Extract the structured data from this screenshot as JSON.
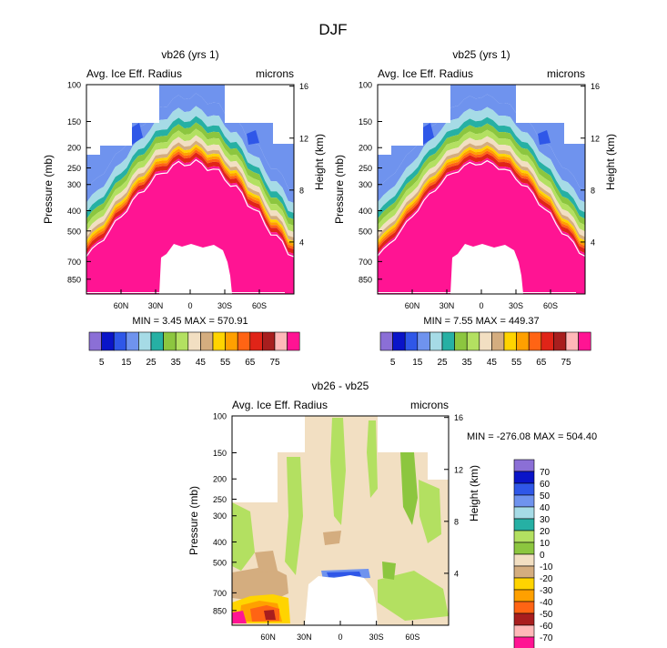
{
  "figure_title": "DJF",
  "colors": {
    "abs_scale": [
      "#8b6fd6",
      "#0a14c8",
      "#2f57e8",
      "#6f93ee",
      "#a6dbe6",
      "#26b0a4",
      "#8cc63f",
      "#b3e061",
      "#f2dfc2",
      "#d4ad7f",
      "#ffd400",
      "#ffa000",
      "#ff6414",
      "#e02418",
      "#a81e1e",
      "#ffb8b8",
      "#ff1493"
    ],
    "diff_scale": [
      "#8b6fd6",
      "#0a14c8",
      "#2f57e8",
      "#6f93ee",
      "#a6dbe6",
      "#26b0a4",
      "#b3e061",
      "#8cc63f",
      "#f2dfc2",
      "#d4ad7f",
      "#ffd400",
      "#ffa000",
      "#ff6414",
      "#a81e1e",
      "#ffb8b8",
      "#ff1493"
    ]
  },
  "chart_data": [
    {
      "type": "heatmap",
      "title": "vb26 (yrs 1)",
      "left_label": "Avg. Ice Eff. Radius",
      "right_label": "microns",
      "xlabel": "",
      "ylabel": "Pressure (mb)",
      "y2label": "Height (km)",
      "x_ticks": [
        "60N",
        "30N",
        "0",
        "30S",
        "60S"
      ],
      "x_tick_values": [
        60,
        30,
        0,
        -30,
        -60
      ],
      "xlim": [
        90,
        -90
      ],
      "y_ticks": [
        "100",
        "150",
        "200",
        "250",
        "300",
        "400",
        "500",
        "700",
        "850"
      ],
      "y_tick_values": [
        100,
        150,
        200,
        250,
        300,
        400,
        500,
        700,
        850
      ],
      "ylim": [
        100,
        1000
      ],
      "y2_ticks": [
        "16",
        "12",
        "8",
        "4"
      ],
      "y2_tick_values": [
        16,
        12,
        8,
        4
      ],
      "min": 3.45,
      "max": 570.91,
      "stats": "MIN =   3.45  MAX = 570.91",
      "colorbar_labels": [
        "5",
        "15",
        "25",
        "35",
        "45",
        "55",
        "65",
        "75"
      ],
      "contour_levels": [
        5,
        10,
        15,
        20,
        25,
        30,
        35,
        40,
        45,
        50,
        55,
        60,
        65,
        70,
        75
      ]
    },
    {
      "type": "heatmap",
      "title": "vb25 (yrs 1)",
      "left_label": "Avg. Ice Eff. Radius",
      "right_label": "microns",
      "xlabel": "",
      "ylabel": "Pressure (mb)",
      "y2label": "Height (km)",
      "x_ticks": [
        "60N",
        "30N",
        "0",
        "30S",
        "60S"
      ],
      "x_tick_values": [
        60,
        30,
        0,
        -30,
        -60
      ],
      "xlim": [
        90,
        -90
      ],
      "y_ticks": [
        "100",
        "150",
        "200",
        "250",
        "300",
        "400",
        "500",
        "700",
        "850"
      ],
      "y_tick_values": [
        100,
        150,
        200,
        250,
        300,
        400,
        500,
        700,
        850
      ],
      "ylim": [
        100,
        1000
      ],
      "y2_ticks": [
        "16",
        "12",
        "8",
        "4"
      ],
      "y2_tick_values": [
        16,
        12,
        8,
        4
      ],
      "min": 7.55,
      "max": 449.37,
      "stats": "MIN =   7.55  MAX = 449.37",
      "colorbar_labels": [
        "5",
        "15",
        "25",
        "35",
        "45",
        "55",
        "65",
        "75"
      ],
      "contour_levels": [
        5,
        10,
        15,
        20,
        25,
        30,
        35,
        40,
        45,
        50,
        55,
        60,
        65,
        70,
        75
      ]
    },
    {
      "type": "heatmap",
      "title": "vb26 - vb25",
      "left_label": "Avg. Ice Eff. Radius",
      "right_label": "microns",
      "xlabel": "",
      "ylabel": "Pressure (mb)",
      "y2label": "Height (km)",
      "x_ticks": [
        "60N",
        "30N",
        "0",
        "30S",
        "60S"
      ],
      "x_tick_values": [
        60,
        30,
        0,
        -30,
        -60
      ],
      "xlim": [
        90,
        -90
      ],
      "y_ticks": [
        "100",
        "150",
        "200",
        "250",
        "300",
        "400",
        "500",
        "700",
        "850"
      ],
      "y_tick_values": [
        100,
        150,
        200,
        250,
        300,
        400,
        500,
        700,
        850
      ],
      "ylim": [
        100,
        1000
      ],
      "y2_ticks": [
        "16",
        "12",
        "8",
        "4"
      ],
      "y2_tick_values": [
        16,
        12,
        8,
        4
      ],
      "min": -276.08,
      "max": 504.4,
      "stats": "MIN = -276.08  MAX = 504.40",
      "colorbar_labels": [
        "70",
        "60",
        "50",
        "40",
        "30",
        "20",
        "10",
        "0",
        "-10",
        "-20",
        "-30",
        "-40",
        "-50",
        "-60",
        "-70"
      ],
      "contour_levels": [
        -70,
        -60,
        -50,
        -40,
        -30,
        -20,
        -10,
        0,
        10,
        20,
        30,
        40,
        50,
        60,
        70
      ]
    }
  ]
}
